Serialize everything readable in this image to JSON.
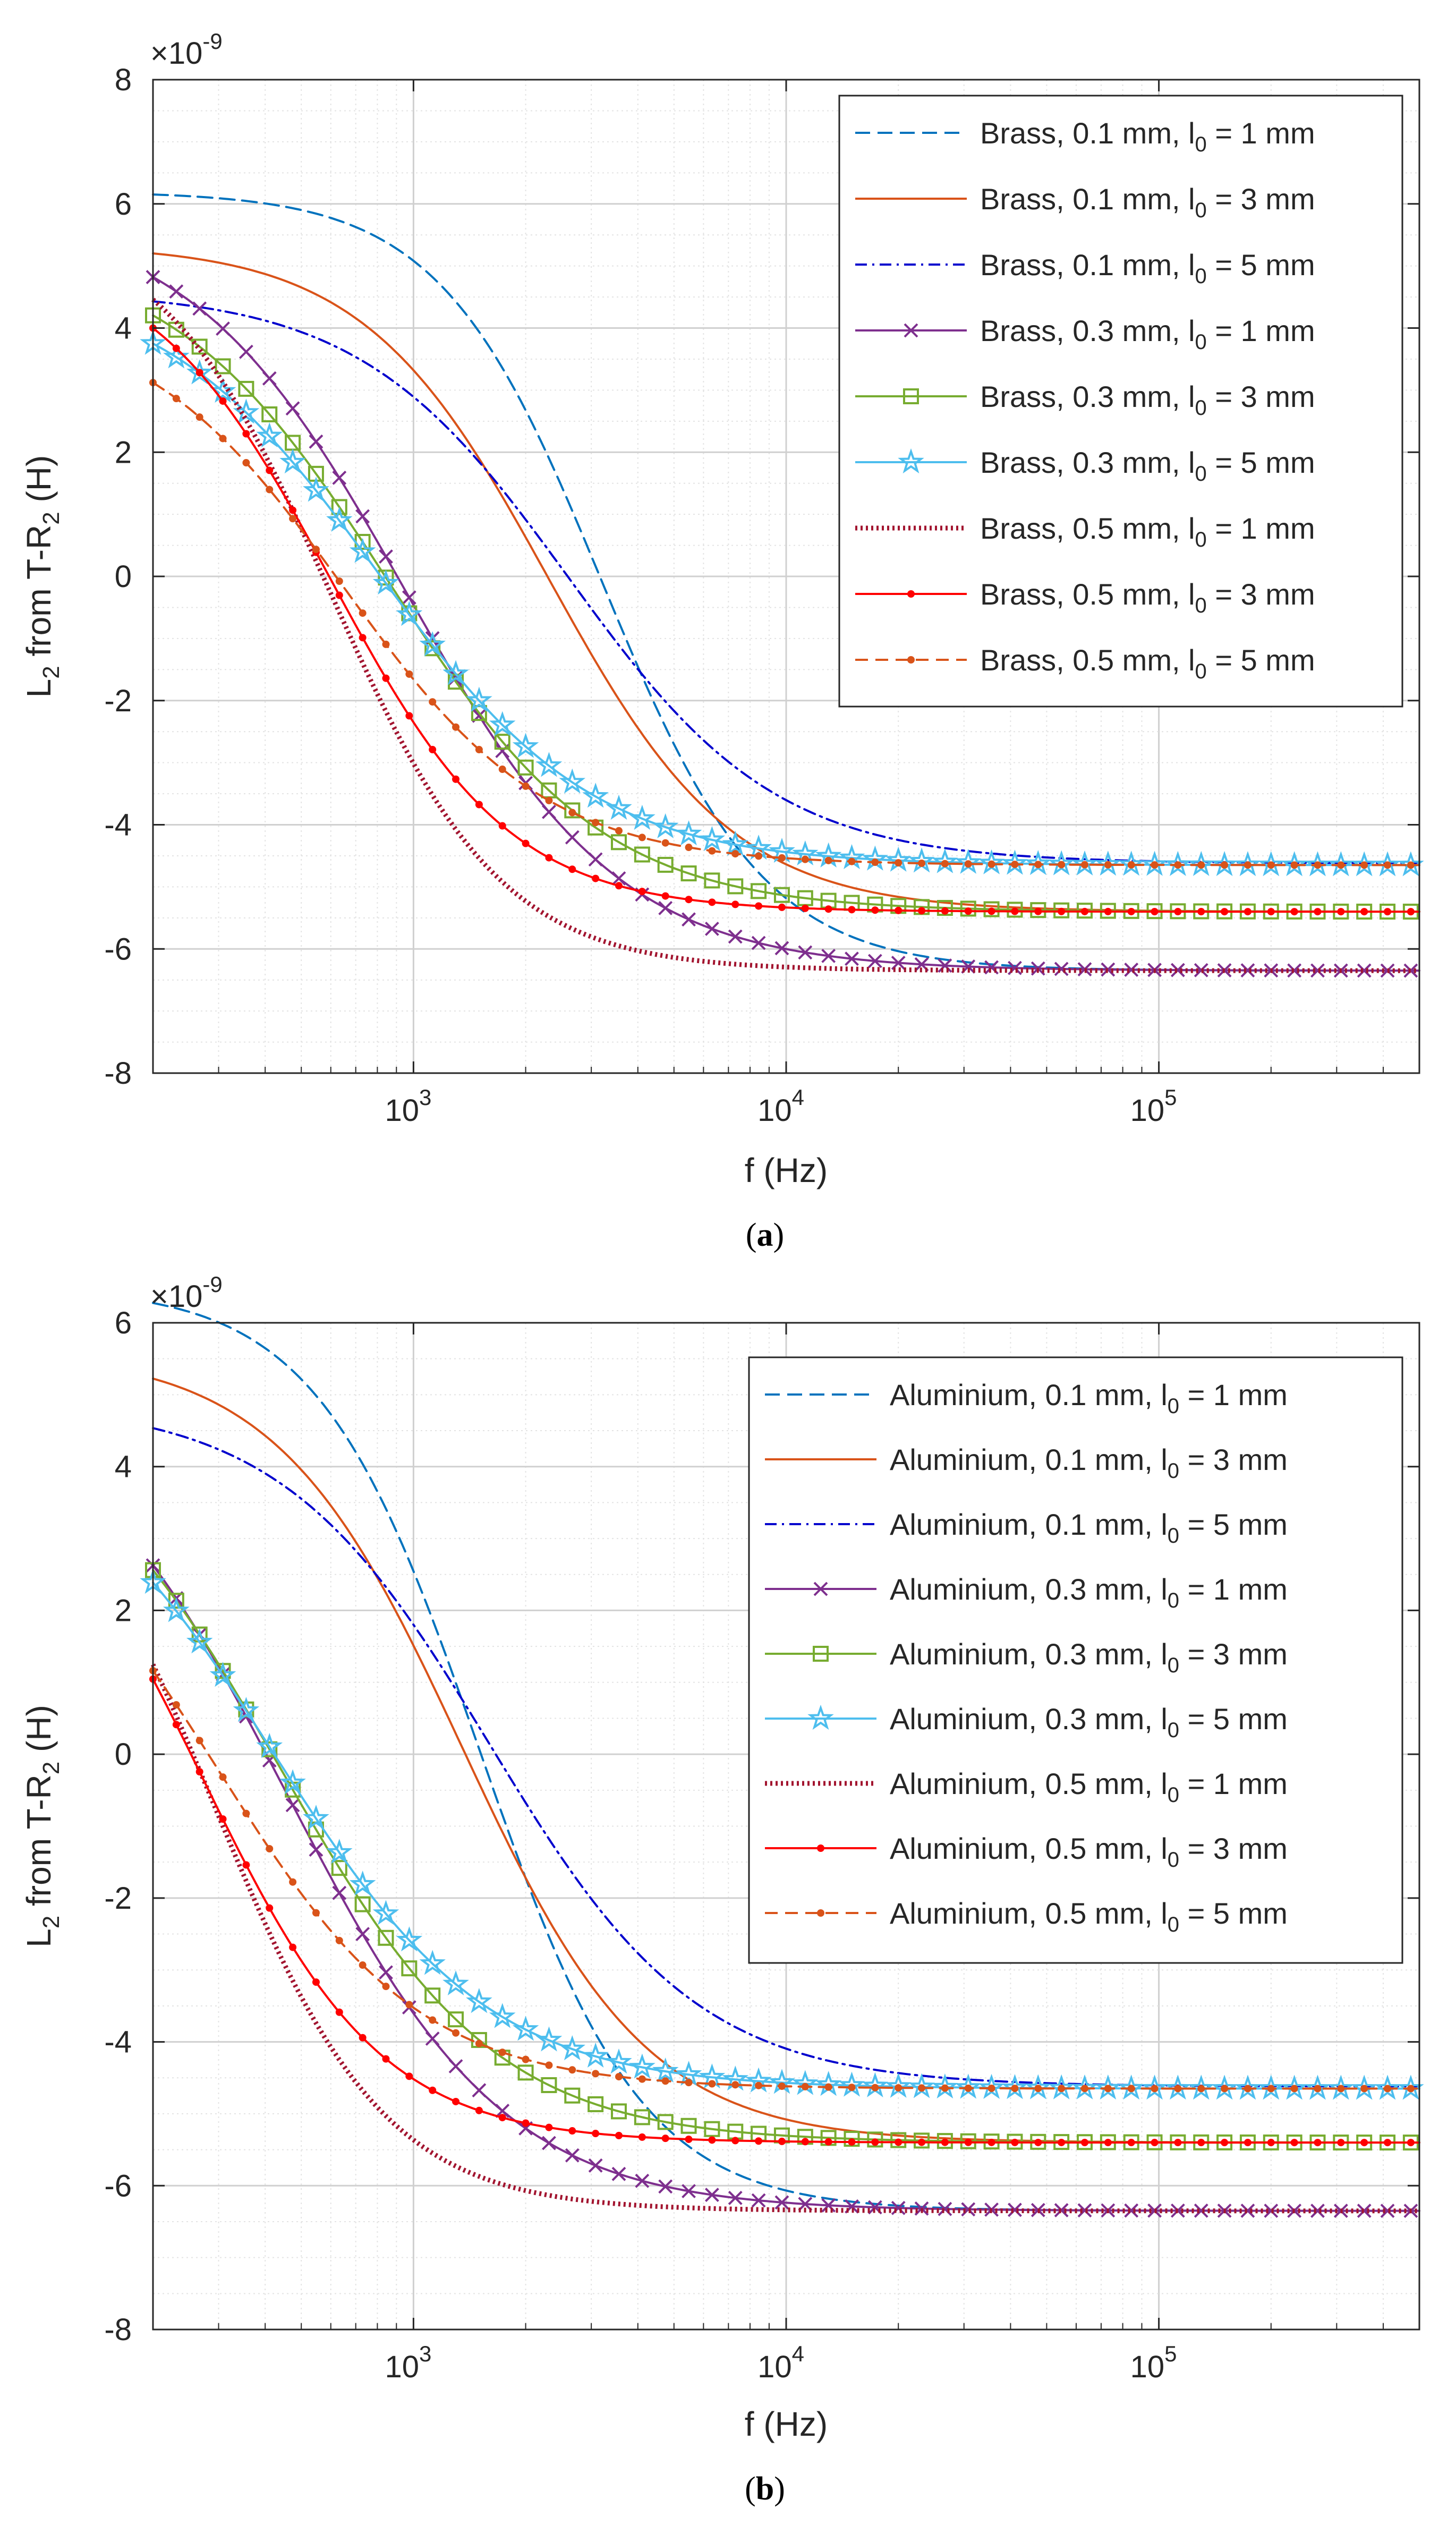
{
  "chart_data": [
    {
      "type": "line",
      "panel_label": "a",
      "exponent_label": "×10",
      "exponent_power": "-9",
      "xlabel": "f (Hz)",
      "ylabel_parts": [
        "L",
        "2",
        " from T-R",
        "2",
        " (H)"
      ],
      "xscale": "log",
      "xlim": [
        200,
        500000
      ],
      "ylim": [
        -8,
        8
      ],
      "yticks": [
        -8,
        -6,
        -4,
        -2,
        0,
        2,
        4,
        6,
        8
      ],
      "xtick_labels": [
        {
          "base": "10",
          "exp": "3",
          "value": 1000
        },
        {
          "base": "10",
          "exp": "4",
          "value": 10000
        },
        {
          "base": "10",
          "exp": "5",
          "value": 100000
        }
      ],
      "grid": true,
      "legend_position": "top-right",
      "series": [
        {
          "name": "Brass, 0.1 mm, l0 = 1 mm",
          "label_main": "Brass, 0.1 mm, l",
          "label_sub": "0",
          "label_tail": " = 1 mm",
          "color": "#0072BD",
          "dash": "28,14",
          "marker": "none",
          "width": 4,
          "ys": 6.2,
          "ye": -6.35,
          "fc": 3200,
          "n": 2.0
        },
        {
          "name": "Brass, 0.1 mm, l0 = 3 mm",
          "label_main": "Brass, 0.1 mm, l",
          "label_sub": "0",
          "label_tail": " = 3 mm",
          "color": "#D95319",
          "dash": "",
          "marker": "none",
          "width": 4,
          "ys": 5.35,
          "ye": -5.4,
          "fc": 2300,
          "n": 1.75
        },
        {
          "name": "Brass, 0.1 mm, l0 = 5 mm",
          "label_main": "Brass, 0.1 mm, l",
          "label_sub": "0",
          "label_tail": " = 5 mm",
          "color": "#0000CD",
          "dash": "22,10,4,10",
          "marker": "none",
          "width": 4,
          "ys": 4.6,
          "ye": -4.62,
          "fc": 2600,
          "n": 1.55
        },
        {
          "name": "Brass, 0.3 mm, l0 = 1 mm",
          "label_main": "Brass, 0.3 mm, l",
          "label_sub": "0",
          "label_tail": " = 1 mm",
          "color": "#7E2F8E",
          "dash": "",
          "marker": "x",
          "width": 4,
          "ys": 5.9,
          "ye": -6.35,
          "fc": 950,
          "n": 1.5
        },
        {
          "name": "Brass, 0.3 mm, l0 = 3 mm",
          "label_main": "Brass, 0.3 mm, l",
          "label_sub": "0",
          "label_tail": " = 3 mm",
          "color": "#77AC30",
          "dash": "",
          "marker": "square",
          "width": 4,
          "ys": 5.3,
          "ye": -5.4,
          "fc": 850,
          "n": 1.5
        },
        {
          "name": "Brass, 0.3 mm, l0 = 5 mm",
          "label_main": "Brass, 0.3 mm, l",
          "label_sub": "0",
          "label_tail": " = 5 mm",
          "color": "#4DBEEE",
          "dash": "",
          "marker": "star",
          "width": 4,
          "ys": 4.8,
          "ye": -4.65,
          "fc": 800,
          "n": 1.5
        },
        {
          "name": "Brass, 0.5 mm, l0 = 1 mm",
          "label_main": "Brass, 0.5 mm, l",
          "label_sub": "0",
          "label_tail": " = 1 mm",
          "color": "#A2142F",
          "dash": "4,6",
          "marker": "none",
          "width": 9,
          "ys": 5.8,
          "ye": -6.35,
          "fc": 600,
          "n": 1.9
        },
        {
          "name": "Brass, 0.5 mm, l0 = 3 mm",
          "label_main": "Brass, 0.5 mm, l",
          "label_sub": "0",
          "label_tail": " = 3 mm",
          "color": "#FF0000",
          "dash": "",
          "marker": "dot",
          "width": 4,
          "ys": 5.3,
          "ye": -5.4,
          "fc": 600,
          "n": 1.8
        },
        {
          "name": "Brass, 0.5 mm, l0 = 5 mm",
          "label_main": "Brass, 0.5 mm, l",
          "label_sub": "0",
          "label_tail": " = 5 mm",
          "color": "#D95319",
          "dash": "24,14",
          "marker": "dot",
          "width": 4,
          "ys": 4.3,
          "ye": -4.65,
          "fc": 650,
          "n": 1.6
        }
      ]
    },
    {
      "type": "line",
      "panel_label": "b",
      "exponent_label": "×10",
      "exponent_power": "-9",
      "xlabel": "f (Hz)",
      "ylabel_parts": [
        "L",
        "2",
        " from T-R",
        "2",
        " (H)"
      ],
      "xscale": "log",
      "xlim": [
        200,
        500000
      ],
      "ylim": [
        -8,
        6
      ],
      "yticks": [
        -8,
        -6,
        -4,
        -2,
        0,
        2,
        4,
        6
      ],
      "xtick_labels": [
        {
          "base": "10",
          "exp": "3",
          "value": 1000
        },
        {
          "base": "10",
          "exp": "4",
          "value": 10000
        },
        {
          "base": "10",
          "exp": "5",
          "value": 100000
        }
      ],
      "grid": true,
      "legend_position": "top-right",
      "series": [
        {
          "name": "Aluminium, 0.1 mm, l0 = 1 mm",
          "label_main": "Aluminium, 0.1 mm, l",
          "label_sub": "0",
          "label_tail": " = 1 mm",
          "color": "#0072BD",
          "dash": "28,14",
          "marker": "none",
          "width": 4,
          "ys": 6.5,
          "ye": -6.35,
          "fc": 1500,
          "n": 2.0
        },
        {
          "name": "Aluminium, 0.1 mm, l0 = 3 mm",
          "label_main": "Aluminium, 0.1 mm, l",
          "label_sub": "0",
          "label_tail": " = 3 mm",
          "color": "#D95319",
          "dash": "",
          "marker": "none",
          "width": 4,
          "ys": 5.6,
          "ye": -5.4,
          "fc": 1350,
          "n": 1.75
        },
        {
          "name": "Aluminium, 0.1 mm, l0 = 5 mm",
          "label_main": "Aluminium, 0.1 mm, l",
          "label_sub": "0",
          "label_tail": " = 5 mm",
          "color": "#0000CD",
          "dash": "22,10,4,10",
          "marker": "none",
          "width": 4,
          "ys": 4.9,
          "ye": -4.62,
          "fc": 1600,
          "n": 1.55
        },
        {
          "name": "Aluminium, 0.3 mm, l0 = 1 mm",
          "label_main": "Aluminium, 0.3 mm, l",
          "label_sub": "0",
          "label_tail": " = 1 mm",
          "color": "#7E2F8E",
          "dash": "",
          "marker": "x",
          "width": 4,
          "ys": 5.2,
          "ye": -6.35,
          "fc": 460,
          "n": 1.5
        },
        {
          "name": "Aluminium, 0.3 mm, l0 = 3 mm",
          "label_main": "Aluminium, 0.3 mm, l",
          "label_sub": "0",
          "label_tail": " = 3 mm",
          "color": "#77AC30",
          "dash": "",
          "marker": "square",
          "width": 4,
          "ys": 5.0,
          "ye": -5.4,
          "fc": 440,
          "n": 1.5
        },
        {
          "name": "Aluminium, 0.3 mm, l0 = 5 mm",
          "label_main": "Aluminium, 0.3 mm, l",
          "label_sub": "0",
          "label_tail": " = 5 mm",
          "color": "#4DBEEE",
          "dash": "",
          "marker": "star",
          "width": 4,
          "ys": 4.7,
          "ye": -4.65,
          "fc": 420,
          "n": 1.5
        },
        {
          "name": "Aluminium, 0.5 mm, l0 = 1 mm",
          "label_main": "Aluminium, 0.5 mm, l",
          "label_sub": "0",
          "label_tail": " = 1 mm",
          "color": "#A2142F",
          "dash": "4,6",
          "marker": "none",
          "width": 9,
          "ys": 5.0,
          "ye": -6.35,
          "fc": 290,
          "n": 1.9
        },
        {
          "name": "Aluminium, 0.5 mm, l0 = 3 mm",
          "label_main": "Aluminium, 0.5 mm, l",
          "label_sub": "0",
          "label_tail": " = 3 mm",
          "color": "#FF0000",
          "dash": "",
          "marker": "dot",
          "width": 4,
          "ys": 4.8,
          "ye": -5.4,
          "fc": 270,
          "n": 1.8
        },
        {
          "name": "Aluminium, 0.5 mm, l0 = 5 mm",
          "label_main": "Aluminium, 0.5 mm, l",
          "label_sub": "0",
          "label_tail": " = 5 mm",
          "color": "#D95319",
          "dash": "24,14",
          "marker": "dot",
          "width": 4,
          "ys": 4.2,
          "ye": -4.65,
          "fc": 300,
          "n": 1.6
        }
      ]
    }
  ]
}
